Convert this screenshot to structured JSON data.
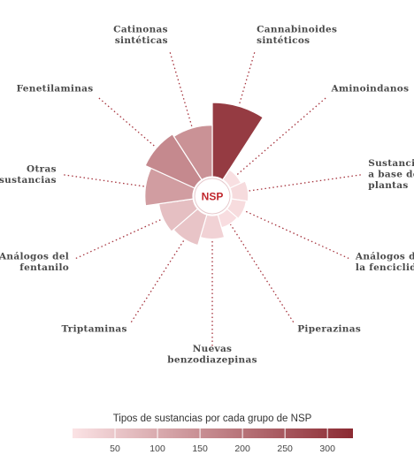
{
  "chart_data": {
    "type": "radial-bar",
    "center_label": "NSP",
    "categories": [
      {
        "label": [
          "Cannabinoides",
          "sintéticos"
        ],
        "value": 300
      },
      {
        "label": [
          "Aminoindanos"
        ],
        "value": 8
      },
      {
        "label": [
          "Sustancias",
          "a base de",
          "plantas"
        ],
        "value": 15
      },
      {
        "label": [
          "Análogos de",
          "la fenciclidina"
        ],
        "value": 12
      },
      {
        "label": [
          "Piperazinas"
        ],
        "value": 10
      },
      {
        "label": [
          "Nuevas",
          "benzodiazepinas"
        ],
        "value": 30
      },
      {
        "label": [
          "Triptaminas"
        ],
        "value": 55
      },
      {
        "label": [
          "Análogos del",
          "fentanilo"
        ],
        "value": 65
      },
      {
        "label": [
          "Otras",
          "sustancias"
        ],
        "value": 125
      },
      {
        "label": [
          "Fenetilaminas"
        ],
        "value": 160
      },
      {
        "label": [
          "Catinonas",
          "sintéticas"
        ],
        "value": 145
      }
    ],
    "legend": {
      "title": "Tipos de sustancias por cada grupo de NSP",
      "ticks": [
        50,
        100,
        150,
        200,
        250,
        300
      ],
      "range": [
        0,
        330
      ]
    },
    "colors": {
      "low": "#fbe3e5",
      "high": "#8b2a32",
      "leader": "#a6343e",
      "center_text": "#c0272d"
    }
  }
}
